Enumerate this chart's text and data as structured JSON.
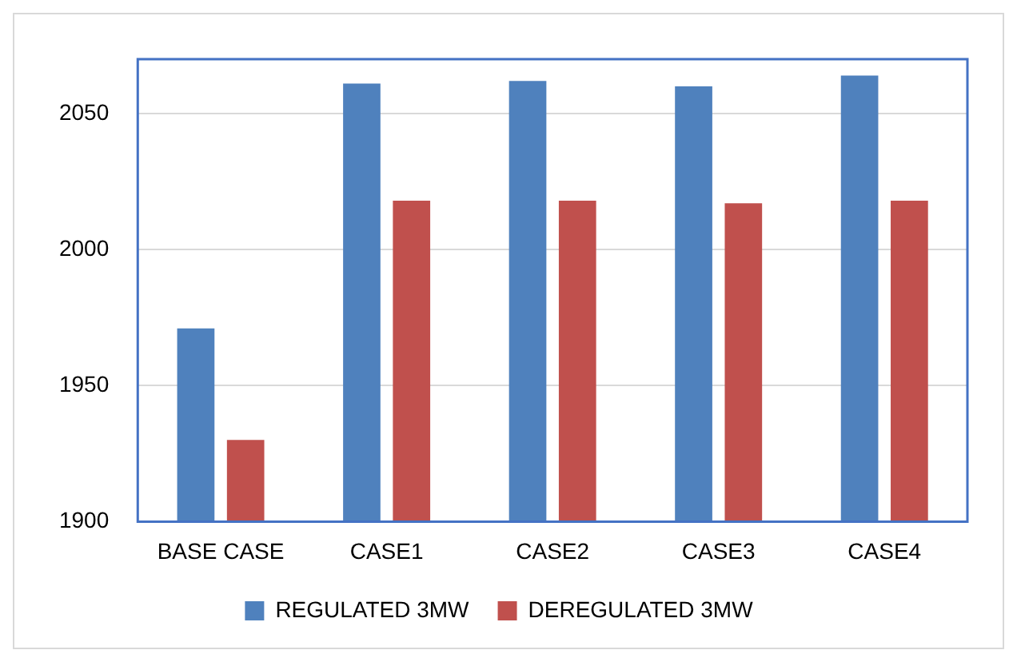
{
  "chart_data": {
    "type": "bar",
    "categories": [
      "BASE CASE",
      "CASE1",
      "CASE2",
      "CASE3",
      "CASE4"
    ],
    "series": [
      {
        "name": "REGULATED 3MW",
        "color": "#4f81bd",
        "values": [
          1971,
          2061,
          2062,
          2060,
          2064
        ]
      },
      {
        "name": "DEREGULATED 3MW",
        "color": "#c0504d",
        "values": [
          1930,
          2018,
          2018,
          2017,
          2018
        ]
      }
    ],
    "ylim": [
      1900,
      2070
    ],
    "yticks": [
      1900,
      1950,
      2000,
      2050
    ],
    "grid": "y",
    "legend": "bottom"
  }
}
